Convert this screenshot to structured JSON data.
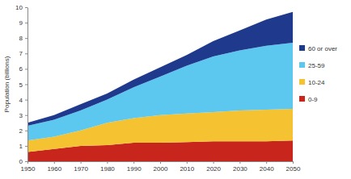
{
  "chart_data": {
    "type": "area",
    "stacked": true,
    "legend": "right",
    "y_label": "Population (billions)",
    "x": [
      1950,
      1960,
      1970,
      1980,
      1990,
      2000,
      2010,
      2020,
      2030,
      2040,
      2050
    ],
    "xlim": [
      1950,
      2050
    ],
    "xticks": [
      1950,
      1960,
      1970,
      1980,
      1990,
      2000,
      2010,
      2020,
      2030,
      2040,
      2050
    ],
    "ylim": [
      0,
      10
    ],
    "yticks": [
      0,
      1,
      2,
      3,
      4,
      5,
      6,
      7,
      8,
      9,
      10
    ],
    "series": [
      {
        "name": "0-9",
        "color": "#c8261c",
        "values": [
          0.6,
          0.8,
          1.0,
          1.05,
          1.2,
          1.2,
          1.25,
          1.3,
          1.3,
          1.3,
          1.35
        ]
      },
      {
        "name": "10-24",
        "color": "#f5c232",
        "values": [
          0.75,
          0.8,
          1.0,
          1.45,
          1.6,
          1.8,
          1.85,
          1.9,
          2.0,
          2.05,
          2.05
        ]
      },
      {
        "name": "25-59",
        "color": "#5cc8f0",
        "values": [
          0.95,
          1.1,
          1.3,
          1.5,
          2.0,
          2.5,
          3.1,
          3.6,
          3.9,
          4.15,
          4.3
        ]
      },
      {
        "name": "60 or over",
        "color": "#1f3a8c",
        "values": [
          0.2,
          0.3,
          0.4,
          0.4,
          0.5,
          0.6,
          0.7,
          1.0,
          1.3,
          1.7,
          2.0
        ]
      }
    ]
  }
}
